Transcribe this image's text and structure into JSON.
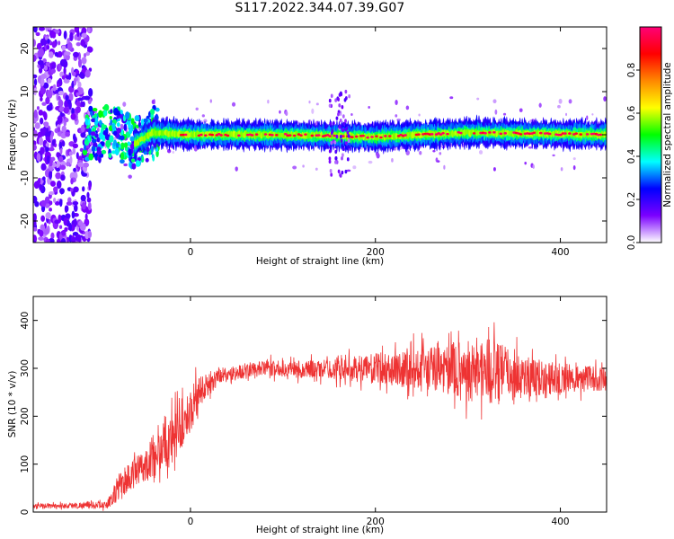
{
  "page_title": "S117.2022.344.07.39.G07",
  "colors": {
    "signal": "#ee3333",
    "axis": "#000000",
    "background": "#ffffff"
  },
  "chart_data": [
    {
      "type": "heatmap",
      "title": "",
      "xlabel": "Height of straight line (km)",
      "ylabel": "Frequency (Hz)",
      "xlim": [
        -170,
        450
      ],
      "ylim": [
        -25,
        25
      ],
      "x_ticks": [
        0,
        200,
        400
      ],
      "x_tick_labels": [
        "0",
        "200",
        "400"
      ],
      "y_ticks": [
        -20,
        -10,
        0,
        10,
        20
      ],
      "y_tick_labels": [
        "-20",
        "-10",
        "0",
        "10",
        "20"
      ],
      "grid": false,
      "ridge_center_hz": [
        {
          "x": -110,
          "y": 0
        },
        {
          "x": -80,
          "y": 0.5
        },
        {
          "x": -60,
          "y": -2
        },
        {
          "x": -40,
          "y": 0.5
        },
        {
          "x": 0,
          "y": 0
        },
        {
          "x": 100,
          "y": 0
        },
        {
          "x": 200,
          "y": -0.5
        },
        {
          "x": 300,
          "y": 0.5
        },
        {
          "x": 450,
          "y": 0
        }
      ],
      "colorbar": {
        "label": "Normalized spectral amplitude",
        "range": [
          0,
          1
        ],
        "ticks": [
          0.0,
          0.2,
          0.4,
          0.6,
          0.8
        ],
        "tick_labels": [
          "0.0",
          "0.2",
          "0.4",
          "0.6",
          "0.8"
        ],
        "colormap": [
          "#ffffff",
          "#7b00ff",
          "#0000ff",
          "#00ffff",
          "#00ff00",
          "#ffff00",
          "#ff8800",
          "#ff0000",
          "#ff0077"
        ]
      }
    },
    {
      "type": "line",
      "title": "",
      "xlabel": "Height of straight line (km)",
      "ylabel": "SNR (10 * v/v)",
      "xlim": [
        -170,
        450
      ],
      "ylim": [
        0,
        450
      ],
      "x_ticks": [
        0,
        200,
        400
      ],
      "x_tick_labels": [
        "0",
        "200",
        "400"
      ],
      "y_ticks": [
        0,
        100,
        200,
        300,
        400
      ],
      "y_tick_labels": [
        "0",
        "100",
        "200",
        "300",
        "400"
      ],
      "grid": false,
      "series_color": "#ee3333",
      "envelope": [
        {
          "x": -170,
          "mean": 12,
          "noise": 6
        },
        {
          "x": -90,
          "mean": 15,
          "noise": 10
        },
        {
          "x": -75,
          "mean": 60,
          "noise": 40
        },
        {
          "x": -50,
          "mean": 95,
          "noise": 40
        },
        {
          "x": -30,
          "mean": 140,
          "noise": 80
        },
        {
          "x": -10,
          "mean": 175,
          "noise": 60
        },
        {
          "x": 10,
          "mean": 250,
          "noise": 50
        },
        {
          "x": 30,
          "mean": 285,
          "noise": 20
        },
        {
          "x": 80,
          "mean": 300,
          "noise": 20
        },
        {
          "x": 150,
          "mean": 298,
          "noise": 25
        },
        {
          "x": 250,
          "mean": 300,
          "noise": 55
        },
        {
          "x": 320,
          "mean": 295,
          "noise": 90
        },
        {
          "x": 380,
          "mean": 280,
          "noise": 45
        },
        {
          "x": 450,
          "mean": 278,
          "noise": 30
        }
      ]
    }
  ]
}
